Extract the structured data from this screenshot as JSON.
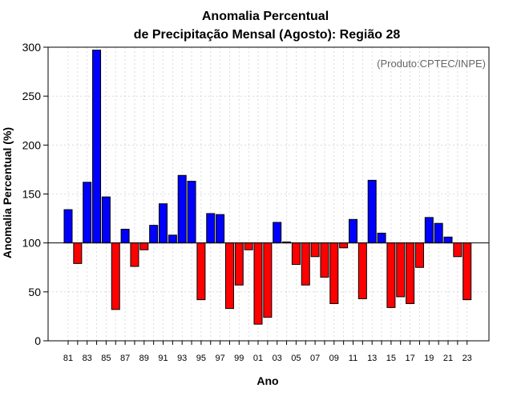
{
  "chart_data": {
    "type": "bar",
    "title_lines": [
      "Anomalia Percentual",
      "de Precipitação Mensal (Agosto): Região 28"
    ],
    "credit": "(Produto:CPTEC/INPE)",
    "xlabel": "Ano",
    "ylabel": "Anomalia Percentual (%)",
    "baseline": 100,
    "ylim": [
      0,
      300
    ],
    "yticks": [
      0,
      50,
      100,
      150,
      200,
      250,
      300
    ],
    "grid": true,
    "colors": {
      "above": "#0000ff",
      "below": "#ff0000",
      "edge": "#000000",
      "grid": "#d3d3d3"
    },
    "categories": [
      "81",
      "82",
      "83",
      "84",
      "85",
      "86",
      "87",
      "88",
      "89",
      "90",
      "91",
      "92",
      "93",
      "94",
      "95",
      "96",
      "97",
      "98",
      "99",
      "00",
      "01",
      "02",
      "03",
      "04",
      "05",
      "06",
      "07",
      "08",
      "09",
      "10",
      "11",
      "12",
      "13",
      "14",
      "15",
      "16",
      "17",
      "18",
      "19",
      "20",
      "21",
      "22",
      "23"
    ],
    "xtick_labels": [
      "81",
      "83",
      "85",
      "87",
      "89",
      "91",
      "93",
      "95",
      "97",
      "99",
      "01",
      "03",
      "05",
      "07",
      "09",
      "11",
      "13",
      "15",
      "17",
      "19",
      "21",
      "23"
    ],
    "values": [
      134,
      79,
      162,
      297,
      147,
      32,
      114,
      76,
      93,
      118,
      140,
      108,
      169,
      163,
      42,
      130,
      129,
      33,
      57,
      93,
      17,
      24,
      121,
      101,
      78,
      57,
      86,
      65,
      38,
      95,
      124,
      43,
      164,
      110,
      34,
      45,
      38,
      75,
      126,
      120,
      106,
      86,
      42
    ]
  }
}
